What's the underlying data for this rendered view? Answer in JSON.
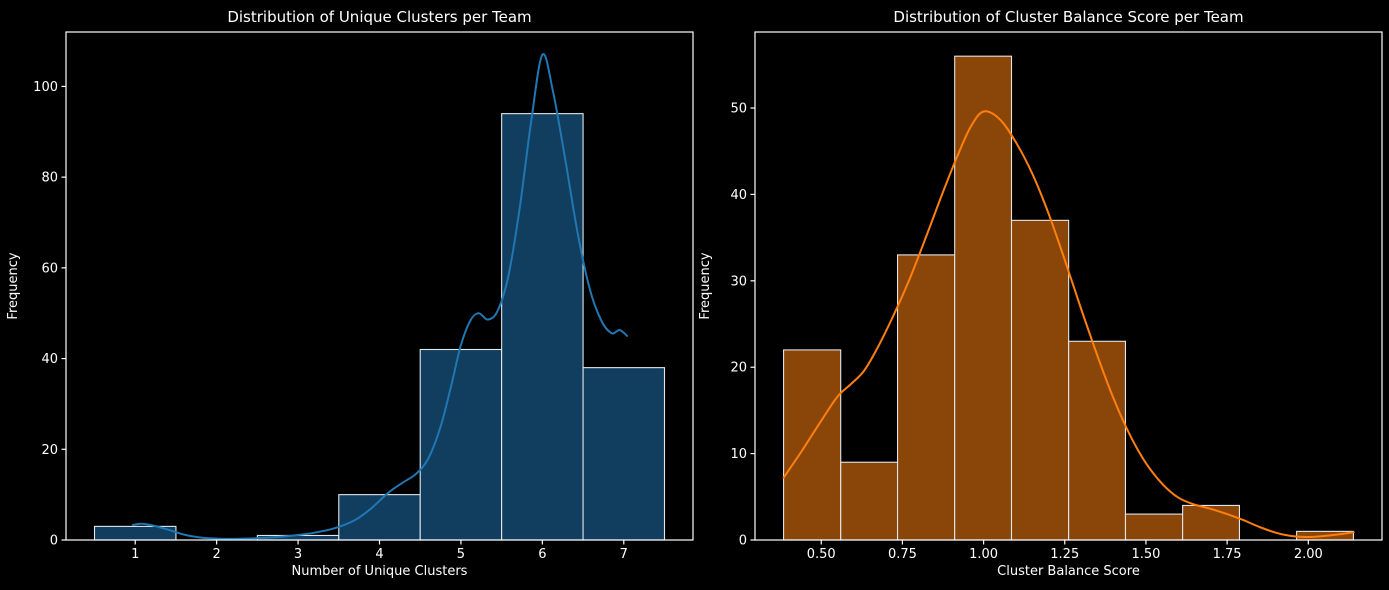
{
  "figure": {
    "background": "#000000",
    "text_color": "#ffffff",
    "axis_color": "#ffffff"
  },
  "chart_data": [
    {
      "type": "bar",
      "subtype": "histogram_with_kde",
      "title": "Distribution of Unique Clusters per Team",
      "xlabel": "Number of Unique Clusters",
      "ylabel": "Frequency",
      "bin_edges": [
        0.5,
        1.5,
        2.5,
        3.5,
        4.5,
        5.5,
        6.5,
        7.5
      ],
      "counts": [
        3,
        0,
        1,
        10,
        42,
        94,
        38
      ],
      "kde": [
        [
          0.97,
          3.3
        ],
        [
          1.08,
          3.6
        ],
        [
          1.22,
          3.2
        ],
        [
          1.4,
          2.3
        ],
        [
          1.6,
          1.2
        ],
        [
          1.8,
          0.55
        ],
        [
          2.0,
          0.3
        ],
        [
          2.2,
          0.25
        ],
        [
          2.45,
          0.35
        ],
        [
          2.7,
          0.6
        ],
        [
          2.95,
          1.0
        ],
        [
          3.2,
          1.6
        ],
        [
          3.45,
          2.6
        ],
        [
          3.7,
          4.4
        ],
        [
          3.9,
          7.0
        ],
        [
          4.1,
          10.3
        ],
        [
          4.28,
          12.6
        ],
        [
          4.45,
          14.6
        ],
        [
          4.6,
          18.0
        ],
        [
          4.75,
          25.0
        ],
        [
          4.88,
          34.0
        ],
        [
          5.0,
          43.0
        ],
        [
          5.12,
          48.5
        ],
        [
          5.22,
          50.0
        ],
        [
          5.33,
          48.6
        ],
        [
          5.45,
          50.5
        ],
        [
          5.58,
          58.0
        ],
        [
          5.72,
          73.0
        ],
        [
          5.86,
          92.0
        ],
        [
          6.0,
          107.0
        ],
        [
          6.13,
          99.0
        ],
        [
          6.28,
          84.0
        ],
        [
          6.43,
          68.0
        ],
        [
          6.58,
          55.5
        ],
        [
          6.72,
          48.5
        ],
        [
          6.85,
          45.6
        ],
        [
          6.95,
          46.3
        ],
        [
          7.04,
          45.0
        ]
      ],
      "xlim": [
        0.15,
        7.85
      ],
      "ylim": [
        0,
        112
      ],
      "xticks": {
        "values": [
          1,
          2,
          3,
          4,
          5,
          6,
          7
        ],
        "labels": [
          "1",
          "2",
          "3",
          "4",
          "5",
          "6",
          "7"
        ]
      },
      "yticks": {
        "values": [
          0,
          20,
          40,
          60,
          80,
          100
        ],
        "labels": [
          "0",
          "20",
          "40",
          "60",
          "80",
          "100"
        ]
      },
      "grid": false,
      "legend": null,
      "colors": {
        "bar_fill": "#113d5e",
        "bar_edge": "#e3e7ea",
        "kde_line": "#1f77b4"
      }
    },
    {
      "type": "bar",
      "subtype": "histogram_with_kde",
      "title": "Distribution of Cluster Balance Score per Team",
      "xlabel": "Cluster Balance Score",
      "ylabel": "Frequency",
      "bin_edges": [
        0.384,
        0.56,
        0.735,
        0.911,
        1.086,
        1.262,
        1.437,
        1.613,
        1.788,
        1.964,
        2.139
      ],
      "counts": [
        22,
        9,
        33,
        56,
        37,
        23,
        3,
        4,
        0,
        1
      ],
      "kde": [
        [
          0.384,
          7.2
        ],
        [
          0.44,
          10.3
        ],
        [
          0.5,
          13.8
        ],
        [
          0.55,
          16.6
        ],
        [
          0.59,
          18.0
        ],
        [
          0.63,
          19.5
        ],
        [
          0.67,
          22.0
        ],
        [
          0.72,
          25.8
        ],
        [
          0.77,
          30.0
        ],
        [
          0.82,
          34.8
        ],
        [
          0.87,
          39.8
        ],
        [
          0.92,
          44.5
        ],
        [
          0.96,
          47.8
        ],
        [
          1.0,
          49.6
        ],
        [
          1.05,
          48.7
        ],
        [
          1.1,
          46.0
        ],
        [
          1.15,
          42.4
        ],
        [
          1.2,
          37.8
        ],
        [
          1.25,
          32.4
        ],
        [
          1.3,
          26.8
        ],
        [
          1.35,
          21.4
        ],
        [
          1.4,
          16.4
        ],
        [
          1.45,
          12.2
        ],
        [
          1.5,
          8.9
        ],
        [
          1.55,
          6.5
        ],
        [
          1.6,
          4.9
        ],
        [
          1.65,
          4.1
        ],
        [
          1.7,
          3.6
        ],
        [
          1.75,
          3.0
        ],
        [
          1.8,
          2.3
        ],
        [
          1.85,
          1.5
        ],
        [
          1.9,
          0.85
        ],
        [
          1.95,
          0.45
        ],
        [
          2.0,
          0.35
        ],
        [
          2.07,
          0.55
        ],
        [
          2.14,
          0.9
        ]
      ],
      "xlim": [
        0.296,
        2.227
      ],
      "ylim": [
        0,
        58.8
      ],
      "xticks": {
        "values": [
          0.5,
          0.75,
          1.0,
          1.25,
          1.5,
          1.75,
          2.0
        ],
        "labels": [
          "0.50",
          "0.75",
          "1.00",
          "1.25",
          "1.50",
          "1.75",
          "2.00"
        ]
      },
      "yticks": {
        "values": [
          0,
          10,
          20,
          30,
          40,
          50
        ],
        "labels": [
          "0",
          "10",
          "20",
          "30",
          "40",
          "50"
        ]
      },
      "grid": false,
      "legend": null,
      "colors": {
        "bar_fill": "#8a4608",
        "bar_edge": "#e3e7ea",
        "kde_line": "#ff7f0e"
      }
    }
  ]
}
